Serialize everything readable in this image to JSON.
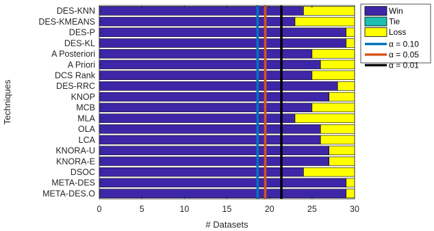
{
  "chart_data": {
    "type": "bar",
    "orientation": "horizontal",
    "stacked": true,
    "categories": [
      "DES-KNN",
      "DES-KMEANS",
      "DES-P",
      "DES-KL",
      "A Posteriori",
      "A Priori",
      "DCS Rank",
      "DES-RRC",
      "KNOP",
      "MCB",
      "MLA",
      "OLA",
      "LCA",
      "KNORA-U",
      "KNORA-E",
      "DSOC",
      "META-DES",
      "META-DES.O"
    ],
    "series": [
      {
        "name": "Win",
        "color": "#3e26a8",
        "values": [
          24,
          23,
          29,
          29,
          25,
          26,
          25,
          28,
          27,
          25,
          23,
          26,
          26,
          27,
          27,
          24,
          29,
          29
        ]
      },
      {
        "name": "Tie",
        "color": "#1fbfb0",
        "values": [
          0,
          0,
          0,
          0,
          0,
          0,
          0,
          0,
          0,
          0,
          0,
          0,
          0,
          0,
          0,
          0,
          0,
          0
        ]
      },
      {
        "name": "Loss",
        "color": "#ffff00",
        "values": [
          6,
          7,
          1,
          1,
          5,
          4,
          5,
          2,
          3,
          5,
          7,
          4,
          4,
          3,
          3,
          6,
          1,
          1
        ]
      }
    ],
    "thresholds": [
      {
        "label": "α = 0.10",
        "value": 18.6,
        "color": "#0072bd"
      },
      {
        "label": "α = 0.05",
        "value": 19.5,
        "color": "#d95319"
      },
      {
        "label": "α = 0.01",
        "value": 21.4,
        "color": "#000000"
      }
    ],
    "xlabel": "# Datasets",
    "ylabel": "Techniques",
    "xlim": [
      0,
      30
    ],
    "xticks": [
      0,
      5,
      10,
      15,
      20,
      25,
      30
    ],
    "grid": false,
    "legend_position": "top-right-outside"
  }
}
